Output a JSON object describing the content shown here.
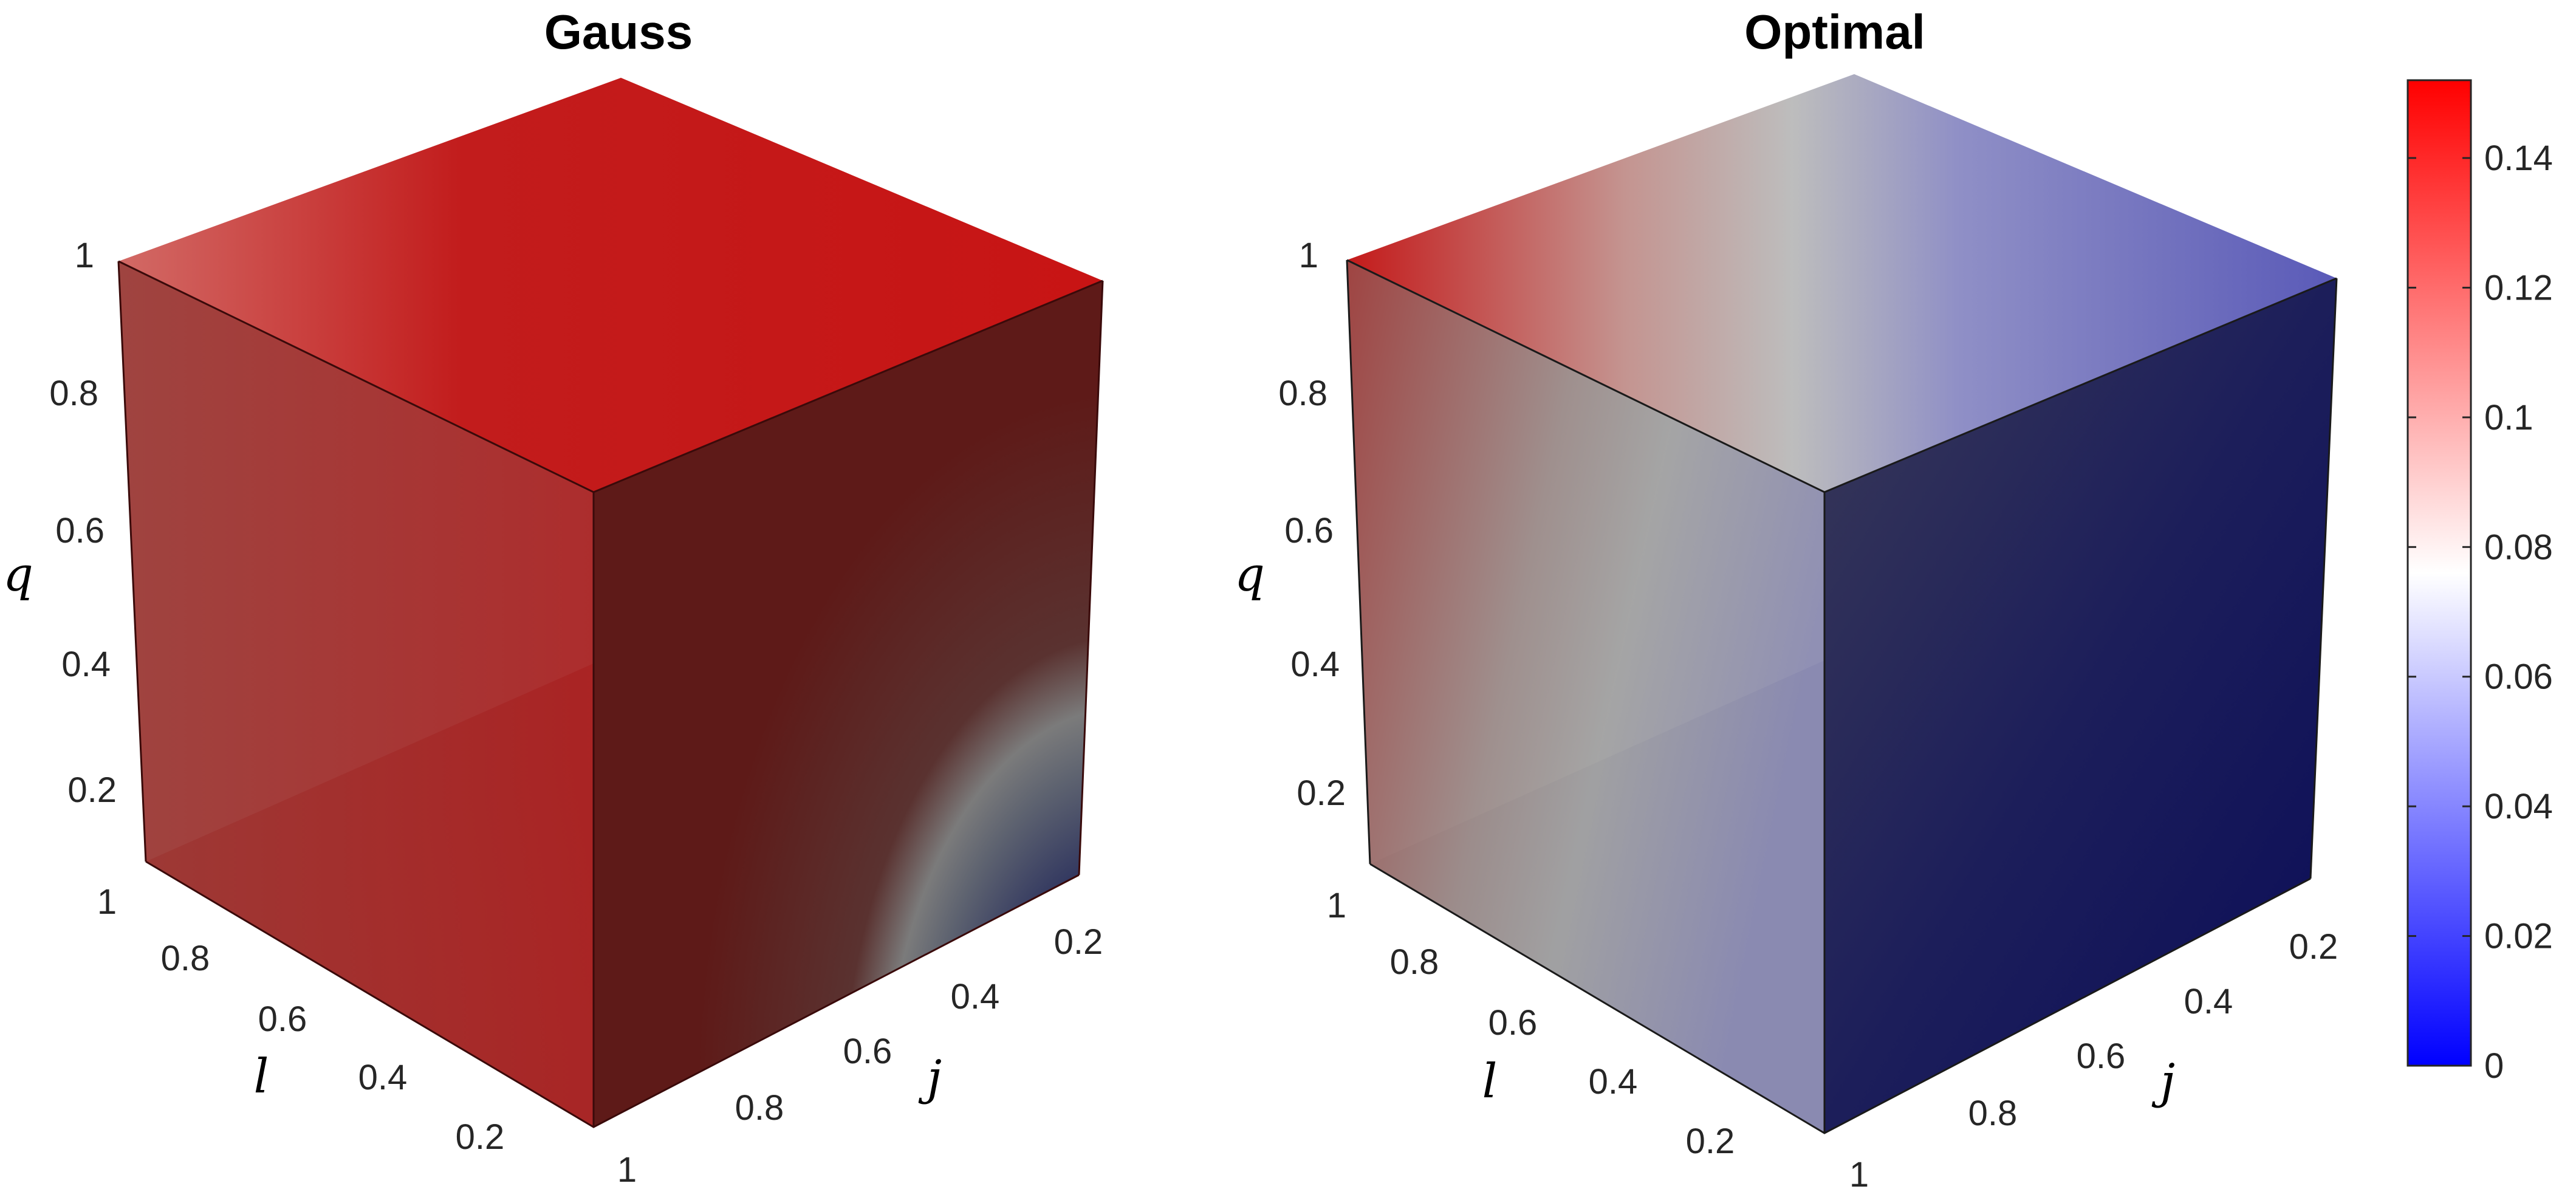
{
  "chart_data": [
    {
      "type": "heatmap",
      "title": "Gauss",
      "xlabel": "j",
      "ylabel": "l",
      "zlabel": "q",
      "x_ticks": [
        "0.2",
        "0.4",
        "0.6",
        "0.8",
        "1"
      ],
      "y_ticks": [
        "1",
        "0.8",
        "0.6",
        "0.4",
        "0.2"
      ],
      "z_ticks": [
        "1",
        "0.8",
        "0.6",
        "0.4",
        "0.2"
      ],
      "faces": {
        "top": {
          "description_values": "near-uniform high values",
          "min": 0.125,
          "max": 0.14
        },
        "left": {
          "min": 0.12,
          "max": 0.135
        },
        "right": {
          "min": 0.0,
          "max": 0.135,
          "isoline": 0.08
        }
      }
    },
    {
      "type": "heatmap",
      "title": "Optimal",
      "xlabel": "j",
      "ylabel": "l",
      "zlabel": "q",
      "x_ticks": [
        "0.2",
        "0.4",
        "0.6",
        "0.8",
        "1"
      ],
      "y_ticks": [
        "1",
        "0.8",
        "0.6",
        "0.4",
        "0.2"
      ],
      "z_ticks": [
        "1",
        "0.8",
        "0.6",
        "0.4",
        "0.2"
      ],
      "faces": {
        "top": {
          "min": 0.03,
          "max": 0.14,
          "isoline": 0.08
        },
        "left": {
          "min": 0.03,
          "max": 0.14,
          "isoline": 0.08
        },
        "right": {
          "min": 0.0,
          "max": 0.07
        }
      }
    }
  ],
  "colorbar": {
    "ticks": [
      "0",
      "0.02",
      "0.04",
      "0.06",
      "0.08",
      "0.1",
      "0.12",
      "0.14"
    ],
    "tick_values": [
      0,
      0.02,
      0.04,
      0.06,
      0.08,
      0.1,
      0.12,
      0.14
    ],
    "range": [
      0,
      0.152
    ],
    "colormap": [
      "#0000ff",
      "#ffffff",
      "#ff0000"
    ]
  }
}
